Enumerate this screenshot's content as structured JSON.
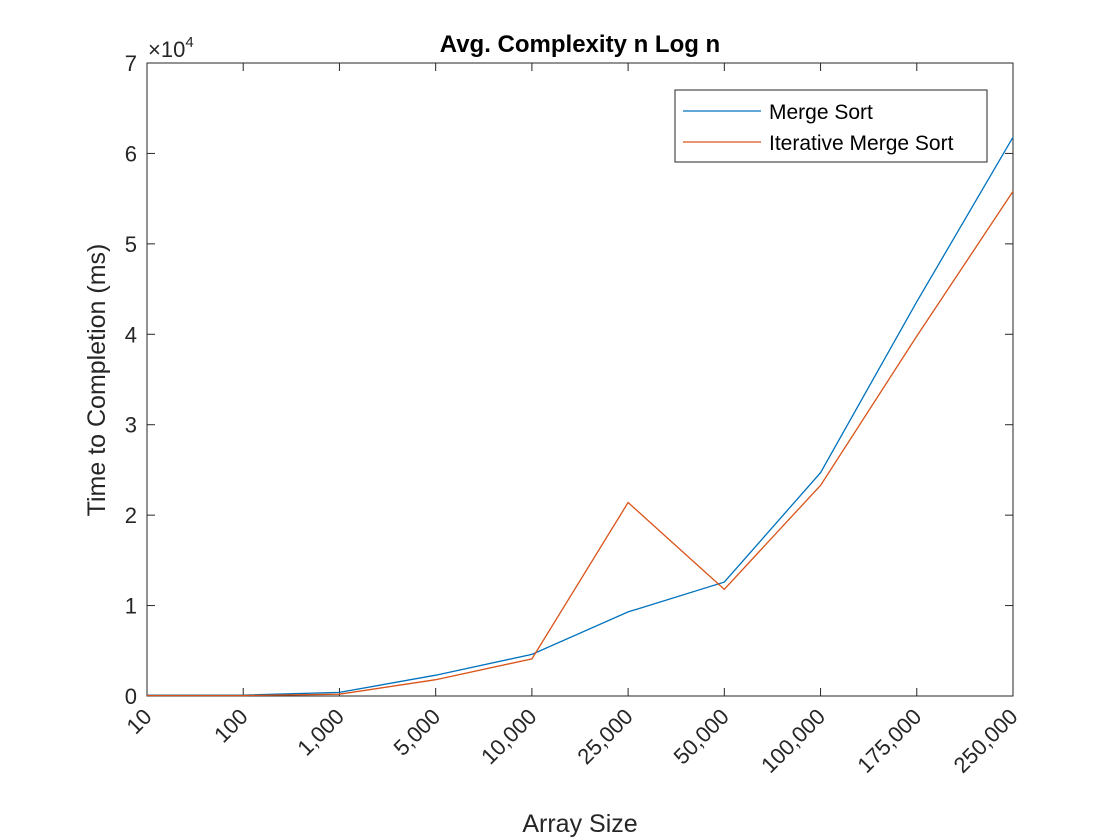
{
  "chart_data": {
    "type": "line",
    "title": "Avg. Complexity n Log n",
    "xlabel": "Array Size",
    "ylabel": "Time to Completion (ms)",
    "categories": [
      "10",
      "100",
      "1,000",
      "5,000",
      "10,000",
      "25,000",
      "50,000",
      "100,000",
      "175,000",
      "250,000"
    ],
    "ylim": [
      0,
      70000
    ],
    "yticks": [
      0,
      10000,
      20000,
      30000,
      40000,
      50000,
      60000,
      70000
    ],
    "ytick_labels": [
      "0",
      "1",
      "2",
      "3",
      "4",
      "5",
      "6",
      "7"
    ],
    "y_exponent_base": "×10",
    "y_exponent_power": "4",
    "legend_position": "top-right",
    "grid": false,
    "series": [
      {
        "name": "Merge Sort",
        "color": "#0072BD",
        "values": [
          100,
          100,
          400,
          2300,
          4600,
          9300,
          12600,
          24700,
          43600,
          61800
        ]
      },
      {
        "name": "Iterative Merge Sort",
        "color": "#D95319",
        "values": [
          50,
          50,
          200,
          1800,
          4100,
          21400,
          11800,
          23300,
          39800,
          55800
        ]
      }
    ]
  }
}
